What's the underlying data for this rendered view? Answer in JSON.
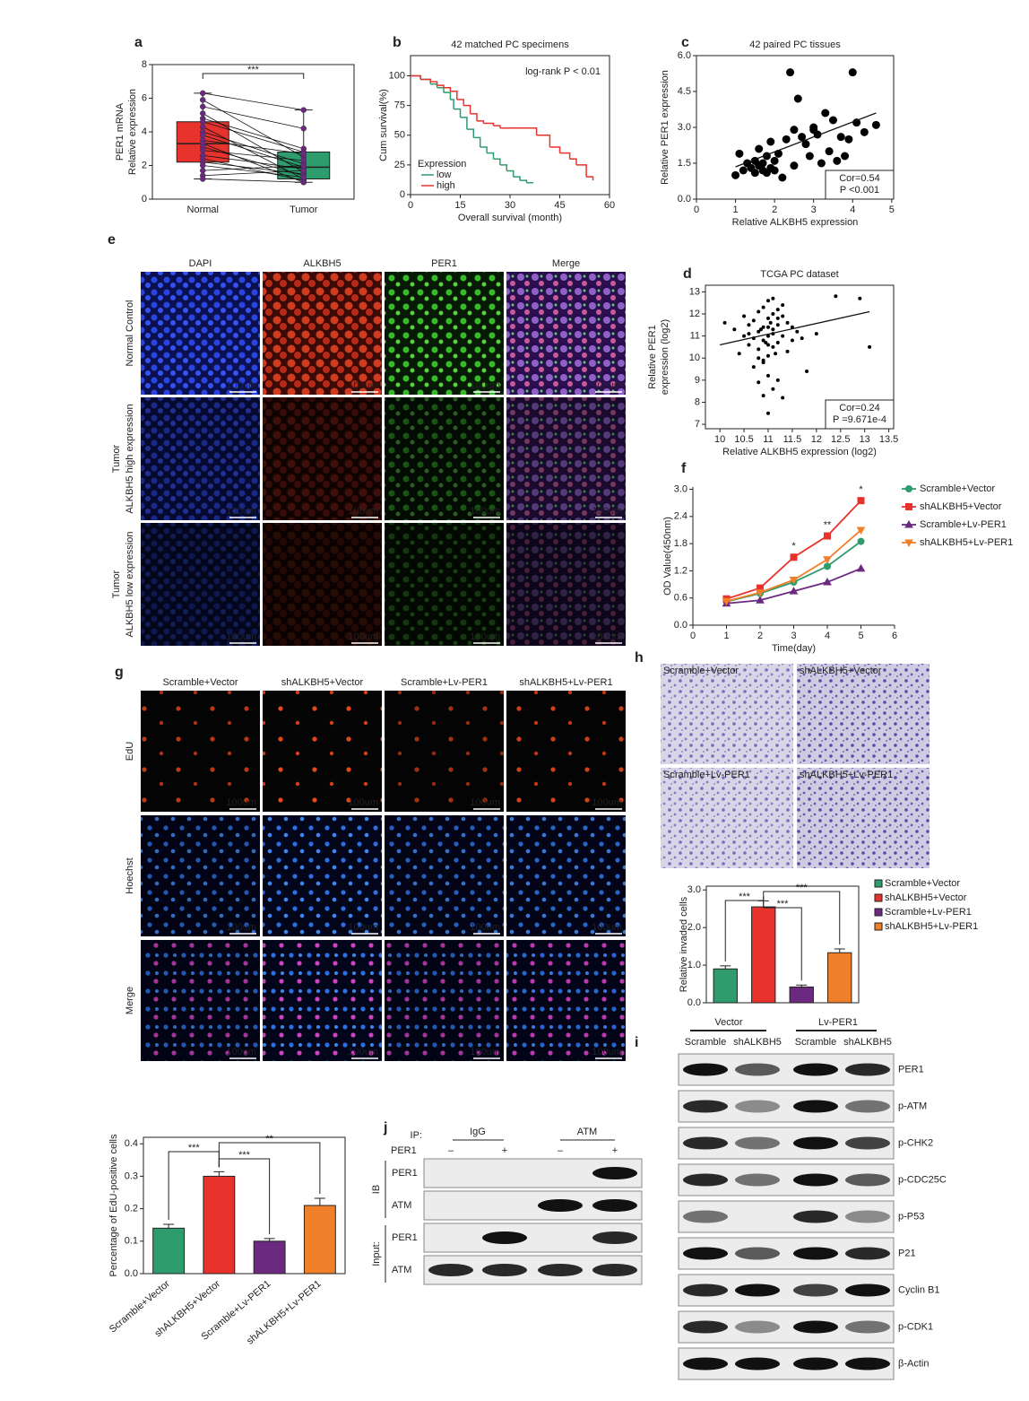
{
  "panel_labels": [
    "a",
    "b",
    "c",
    "d",
    "e",
    "f",
    "g",
    "h",
    "i",
    "j"
  ],
  "chart_data": [
    {
      "type": "box",
      "categories": [
        "Normal",
        "Tumor"
      ],
      "ylabel": [
        "PER1 mRNA",
        "Relative expression"
      ],
      "ylim": [
        0,
        8
      ],
      "yticks": [
        0,
        2,
        4,
        6,
        8
      ],
      "colors": [
        "#e8322c",
        "#2e9c6c"
      ],
      "boxes": [
        {
          "min": 1.2,
          "q1": 2.2,
          "median": 3.3,
          "q3": 4.6,
          "max": 6.3
        },
        {
          "min": 1.0,
          "q1": 1.2,
          "median": 1.9,
          "q3": 2.8,
          "max": 5.3
        }
      ],
      "pairs": [
        [
          6.3,
          5.3
        ],
        [
          5.9,
          2.5
        ],
        [
          5.5,
          4.2
        ],
        [
          5.1,
          1.6
        ],
        [
          4.8,
          3.0
        ],
        [
          4.6,
          2.8
        ],
        [
          4.3,
          1.2
        ],
        [
          4.0,
          2.1
        ],
        [
          3.8,
          1.9
        ],
        [
          3.5,
          2.7
        ],
        [
          3.3,
          1.0
        ],
        [
          3.1,
          1.4
        ],
        [
          2.9,
          2.3
        ],
        [
          2.6,
          1.8
        ],
        [
          2.4,
          1.1
        ],
        [
          2.2,
          1.5
        ],
        [
          2.0,
          1.3
        ],
        [
          1.7,
          2.0
        ],
        [
          1.4,
          1.7
        ],
        [
          1.2,
          1.0
        ]
      ],
      "pair_color": "#111111",
      "point_color": "#6b2a80",
      "significance": [
        "***"
      ]
    },
    {
      "type": "survival",
      "title": "42 matched PC specimens",
      "xlabel": "Overall survival (month)",
      "ylabel": "Cum survival(%)",
      "xlim": [
        0,
        60
      ],
      "xticks": [
        0,
        15,
        30,
        45,
        60
      ],
      "ylim": [
        0,
        117
      ],
      "yticks": [
        0,
        25,
        50,
        75,
        100
      ],
      "annotation": "log-rank P < 0.01",
      "legend_title": "Expression",
      "series": [
        {
          "name": "low",
          "color": "#2e9c6c",
          "x": [
            0,
            3,
            6,
            8,
            10,
            12,
            13,
            15,
            17,
            19,
            21,
            23,
            25,
            27,
            29,
            31,
            33,
            35,
            37
          ],
          "values": [
            100,
            97,
            93,
            90,
            86,
            80,
            72,
            65,
            55,
            48,
            40,
            35,
            30,
            25,
            20,
            15,
            12,
            10,
            10
          ]
        },
        {
          "name": "high",
          "color": "#e8322c",
          "x": [
            0,
            3,
            6,
            8,
            10,
            12,
            14,
            16,
            18,
            20,
            22,
            25,
            27,
            30,
            35,
            38,
            42,
            45,
            48,
            50,
            53,
            55
          ],
          "values": [
            100,
            97,
            95,
            92,
            90,
            87,
            80,
            75,
            68,
            62,
            60,
            58,
            56,
            56,
            56,
            50,
            40,
            35,
            30,
            25,
            15,
            12
          ]
        }
      ]
    },
    {
      "type": "scatter",
      "title": "42 paired PC tissues",
      "xlabel": "Relative ALKBH5 expression",
      "ylabel": "Relative PER1 expression",
      "xlim": [
        0,
        5.05
      ],
      "xticks": [
        0,
        1,
        2,
        3,
        4,
        5
      ],
      "ylim": [
        0,
        6
      ],
      "yticks": [
        {
          "value": 0,
          "label": "0.0"
        },
        1.5,
        {
          "value": 3,
          "label": "3.0"
        },
        4.5,
        {
          "value": 6,
          "label": "6.0"
        }
      ],
      "color": "#000000",
      "x": [
        1.0,
        1.1,
        1.2,
        1.3,
        1.4,
        1.5,
        1.5,
        1.6,
        1.6,
        1.7,
        1.7,
        1.8,
        1.8,
        1.9,
        1.9,
        2.0,
        2.0,
        2.1,
        2.2,
        2.3,
        2.4,
        2.5,
        2.5,
        2.6,
        2.7,
        2.8,
        2.9,
        3.0,
        3.0,
        3.1,
        3.2,
        3.3,
        3.4,
        3.5,
        3.6,
        3.7,
        3.8,
        3.9,
        4.0,
        4.1,
        4.3,
        4.6
      ],
      "values": [
        1.0,
        1.9,
        1.2,
        1.5,
        1.3,
        1.1,
        1.6,
        1.4,
        2.1,
        1.2,
        1.5,
        1.8,
        1.1,
        1.3,
        2.4,
        1.2,
        1.6,
        1.9,
        0.9,
        2.5,
        5.3,
        1.4,
        2.9,
        4.2,
        2.6,
        2.3,
        1.8,
        2.9,
        3.0,
        2.7,
        1.5,
        3.6,
        2.0,
        3.3,
        1.6,
        2.6,
        1.8,
        2.5,
        5.3,
        3.2,
        2.8,
        3.1
      ],
      "fit": {
        "x": [
          1.0,
          4.6
        ],
        "values": [
          1.35,
          3.6
        ]
      },
      "stats": [
        "Cor=0.54",
        "P <0.001"
      ]
    },
    {
      "type": "scatter",
      "title": "TCGA PC dataset",
      "xlabel": "Relative ALKBH5 expression (log2)",
      "ylabel": [
        "Relative PER1",
        "expression (log2)"
      ],
      "xlim": [
        9.7,
        13.6
      ],
      "xticks": [
        10,
        10.5,
        11,
        11.5,
        12,
        12.5,
        13,
        13.5
      ],
      "ylim": [
        6.8,
        13.3
      ],
      "yticks": [
        7,
        8,
        9,
        10,
        11,
        12,
        13
      ],
      "color": "#000000",
      "x": [
        10.1,
        10.3,
        10.4,
        10.5,
        10.5,
        10.6,
        10.6,
        10.7,
        10.7,
        10.7,
        10.8,
        10.8,
        10.8,
        10.8,
        10.9,
        10.9,
        10.9,
        10.9,
        10.9,
        11.0,
        11.0,
        11.0,
        11.0,
        11.0,
        11.0,
        11.1,
        11.1,
        11.1,
        11.1,
        11.1,
        11.2,
        11.2,
        11.2,
        11.2,
        11.3,
        11.3,
        11.3,
        11.4,
        11.4,
        11.5,
        11.5,
        11.6,
        11.7,
        11.8,
        12.0,
        12.4,
        12.9,
        13.1,
        10.9,
        11.0,
        11.1,
        11.2,
        10.8,
        10.6,
        11.0,
        10.95,
        11.05,
        11.15,
        10.85,
        11.3
      ],
      "values": [
        11.6,
        11.3,
        10.2,
        11.0,
        11.9,
        10.6,
        11.5,
        9.6,
        10.9,
        11.7,
        8.9,
        10.4,
        11.2,
        12.1,
        8.3,
        9.8,
        10.8,
        11.4,
        12.3,
        7.5,
        9.2,
        10.1,
        11.0,
        11.8,
        12.6,
        8.6,
        10.5,
        11.3,
        12.0,
        12.7,
        9.0,
        10.7,
        11.5,
        12.2,
        8.2,
        11.0,
        12.4,
        10.3,
        11.6,
        10.8,
        11.4,
        11.2,
        10.9,
        9.4,
        11.1,
        12.8,
        12.7,
        10.5,
        9.9,
        10.6,
        11.1,
        11.8,
        10.0,
        11.1,
        11.4,
        10.7,
        11.6,
        10.2,
        11.3,
        11.9
      ],
      "fit": {
        "x": [
          10.0,
          13.1
        ],
        "values": [
          10.6,
          12.1
        ]
      },
      "stats": [
        "Cor=0.24",
        "P =9.671e-4"
      ]
    },
    {
      "type": "line",
      "xlabel": "Time(day)",
      "ylabel": "OD Value(450nm)",
      "xlim": [
        0,
        6
      ],
      "xticks": [
        0,
        1,
        2,
        3,
        4,
        5,
        6
      ],
      "ylim": [
        0,
        3.05
      ],
      "yticks": [
        {
          "value": 0,
          "label": "0.0"
        },
        {
          "value": 0.6,
          "label": "0.6"
        },
        {
          "value": 1.2,
          "label": "1.2"
        },
        {
          "value": 1.8,
          "label": "1.8"
        },
        {
          "value": 2.4,
          "label": "2.4"
        },
        {
          "value": 3,
          "label": "3.0"
        }
      ],
      "x": [
        1,
        2,
        3,
        4,
        5
      ],
      "series": [
        {
          "name": "Scramble+Vector",
          "color": "#2e9c6c",
          "values": [
            0.52,
            0.7,
            0.95,
            1.3,
            1.85
          ]
        },
        {
          "name": "shALKBH5+Vector",
          "color": "#e8322c",
          "values": [
            0.58,
            0.82,
            1.5,
            1.97,
            2.75
          ]
        },
        {
          "name": "Scramble+Lv-PER1",
          "color": "#6b2a80",
          "values": [
            0.48,
            0.55,
            0.75,
            0.95,
            1.25
          ]
        },
        {
          "name": "shALKBH5+Lv-PER1",
          "color": "#f07f2a",
          "values": [
            0.53,
            0.72,
            1.0,
            1.45,
            2.1
          ]
        }
      ],
      "significance": [
        "*",
        "**",
        "*"
      ]
    },
    {
      "type": "bar",
      "categories": [
        "Scramble+Vector",
        "shALKBH5+Vector",
        "Scramble+Lv-PER1",
        "shALKBH5+Lv-PER1"
      ],
      "colors": [
        "#2e9c6c",
        "#e8322c",
        "#6b2a80",
        "#f07f2a"
      ],
      "values": [
        0.9,
        2.55,
        0.42,
        1.33
      ],
      "errors": [
        0.08,
        0.16,
        0.05,
        0.1
      ],
      "ylim": [
        0,
        3.1
      ],
      "yticks": [
        {
          "value": 0,
          "label": "0.0"
        },
        {
          "value": 1,
          "label": "1.0"
        },
        {
          "value": 2,
          "label": "2.0"
        },
        {
          "value": 3,
          "label": "3.0"
        }
      ],
      "ylabel": "Relative invaded cells",
      "significance": [
        "***",
        "***",
        "***"
      ],
      "legend": "right"
    },
    {
      "type": "bar",
      "categories": [
        "Scramble+Vector",
        "shALKBH5+Vector",
        "Scramble+Lv-PER1",
        "shALKBH5+Lv-PER1"
      ],
      "colors": [
        "#2e9c6c",
        "#e8322c",
        "#6b2a80",
        "#f07f2a"
      ],
      "values": [
        0.14,
        0.3,
        0.1,
        0.21
      ],
      "errors": [
        0.012,
        0.014,
        0.008,
        0.022
      ],
      "ylim": [
        0,
        0.42
      ],
      "yticks": [
        {
          "value": 0,
          "label": "0.0"
        },
        0.1,
        0.2,
        0.3,
        0.4
      ],
      "ylabel": "Percentage of EdU-positive cells",
      "significance": [
        "***",
        "***",
        "**"
      ]
    }
  ],
  "panel_e": {
    "column_headers": [
      "DAPI",
      "ALKBH5",
      "PER1",
      "Merge"
    ],
    "row_labels": [
      [
        "Normal Control"
      ],
      [
        "Tumor",
        "ALKBH5 high expression"
      ],
      [
        "Tumor",
        "ALKBH5 low expression"
      ]
    ],
    "scale_bar": "100um"
  },
  "panel_g": {
    "column_headers": [
      "Scramble+Vector",
      "shALKBH5+Vector",
      "Scramble+Lv-PER1",
      "shALKBH5+Lv-PER1"
    ],
    "row_labels": [
      "EdU",
      "Hoechst",
      "Merge"
    ],
    "scale_bar": "100um"
  },
  "panel_h": {
    "image_labels": [
      "Scramble+Vector",
      "shALKBH5+Vector",
      "Scramble+Lv-PER1",
      "shALKBH5+Lv-PER1"
    ]
  },
  "panel_i": {
    "groups": [
      "Vector",
      "Lv-PER1"
    ],
    "lanes": [
      "Scramble",
      "shALKBH5",
      "Scramble",
      "shALKBH5"
    ],
    "bands": [
      "PER1",
      "p-ATM",
      "p-CHK2",
      "p-CDC25C",
      "p-P53",
      "P21",
      "Cyclin B1",
      "p-CDK1",
      "β-Actin"
    ]
  },
  "panel_j": {
    "ip_label": "IP:",
    "ip_groups": [
      "IgG",
      "ATM"
    ],
    "per1_label": "PER1",
    "per1_signs": [
      "–",
      "+",
      "–",
      "+"
    ],
    "ib_label": "IB",
    "input_label": "Input:",
    "ib_bands": [
      "PER1",
      "ATM"
    ],
    "input_bands": [
      "PER1",
      "ATM"
    ]
  }
}
